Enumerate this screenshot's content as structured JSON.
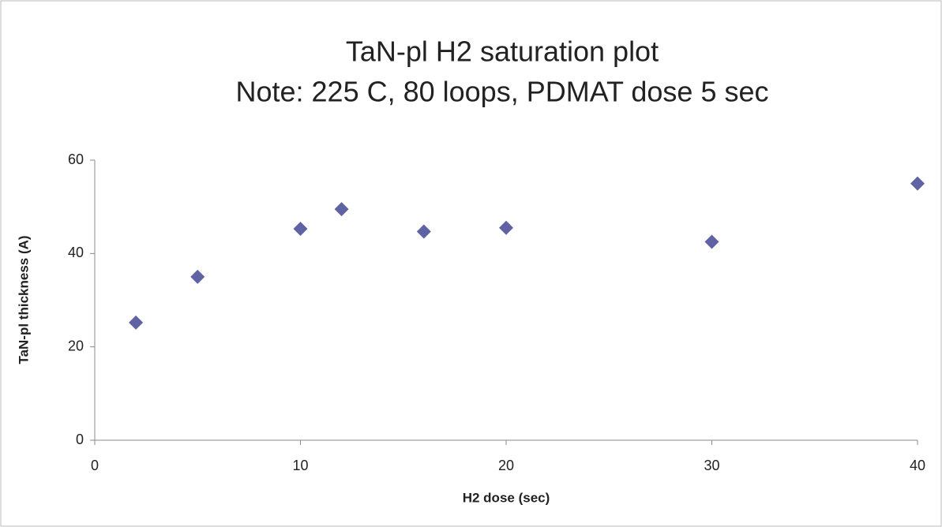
{
  "chart_data": {
    "type": "scatter",
    "title": "TaN-pl H2 saturation plot",
    "subtitle": "Note: 225 C, 80 loops, PDMAT dose 5 sec",
    "x_label": "H2 dose (sec)",
    "y_label": "TaN-pl thickness (A)",
    "series": [
      {
        "color": "#5f62a3",
        "x": [
          2,
          5,
          10,
          12,
          16,
          20,
          30,
          40
        ],
        "values": [
          25.2,
          35,
          45.3,
          49.5,
          44.7,
          45.5,
          42.5,
          55
        ]
      }
    ],
    "xlim": [
      0,
      40
    ],
    "xticks": [
      0,
      10,
      20,
      30,
      40
    ],
    "ylim": [
      0,
      60
    ],
    "yticks": [
      0,
      20,
      40,
      60
    ],
    "grid": false
  }
}
